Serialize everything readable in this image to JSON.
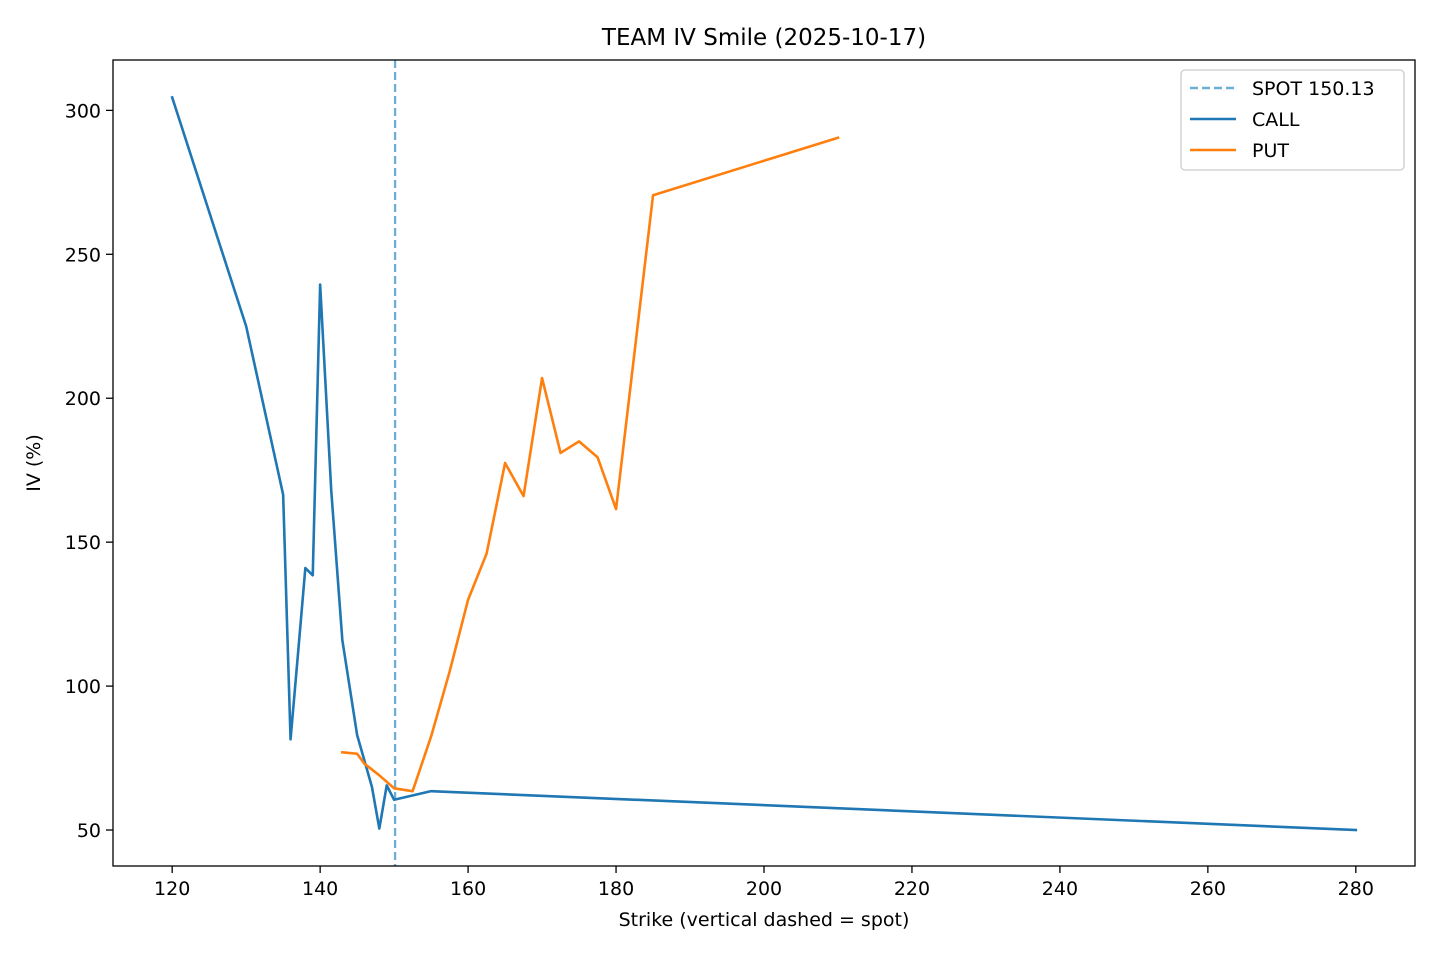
{
  "chart_data": {
    "type": "line",
    "title": "TEAM IV Smile (2025-10-17)",
    "xlabel": "Strike (vertical dashed = spot)",
    "ylabel": "IV (%)",
    "xlim": [
      112,
      288
    ],
    "ylim": [
      37.5,
      317.5
    ],
    "xticks": [
      120,
      140,
      160,
      180,
      200,
      220,
      240,
      260,
      280
    ],
    "yticks": [
      50,
      100,
      150,
      200,
      250,
      300
    ],
    "grid": false,
    "legend_position": "top-right",
    "spot": {
      "label": "SPOT 150.13",
      "value": 150.13,
      "color": "#6baed6"
    },
    "series": [
      {
        "name": "CALL",
        "color": "#1f77b4",
        "points": [
          [
            120,
            304.5
          ],
          [
            130,
            225
          ],
          [
            135,
            166.5
          ],
          [
            136,
            81.5
          ],
          [
            137,
            111
          ],
          [
            138,
            141
          ],
          [
            139,
            138.5
          ],
          [
            140,
            239.5
          ],
          [
            141.5,
            168
          ],
          [
            143,
            116
          ],
          [
            145,
            83
          ],
          [
            147,
            65
          ],
          [
            148,
            50.5
          ],
          [
            149,
            65.5
          ],
          [
            150,
            60.5
          ],
          [
            155,
            63.5
          ],
          [
            280,
            50
          ]
        ]
      },
      {
        "name": "PUT",
        "color": "#ff7f0e",
        "points": [
          [
            143,
            77
          ],
          [
            145,
            76.5
          ],
          [
            146,
            73
          ],
          [
            148,
            69
          ],
          [
            150,
            64.5
          ],
          [
            152.5,
            63.5
          ],
          [
            155,
            82.5
          ],
          [
            157.5,
            105
          ],
          [
            160,
            130
          ],
          [
            162.5,
            146
          ],
          [
            165,
            177.5
          ],
          [
            167.5,
            166
          ],
          [
            170,
            207
          ],
          [
            172.5,
            181
          ],
          [
            175,
            185
          ],
          [
            177.5,
            179.5
          ],
          [
            180,
            161.5
          ],
          [
            185,
            270.5
          ],
          [
            210,
            290.5
          ]
        ]
      }
    ]
  }
}
